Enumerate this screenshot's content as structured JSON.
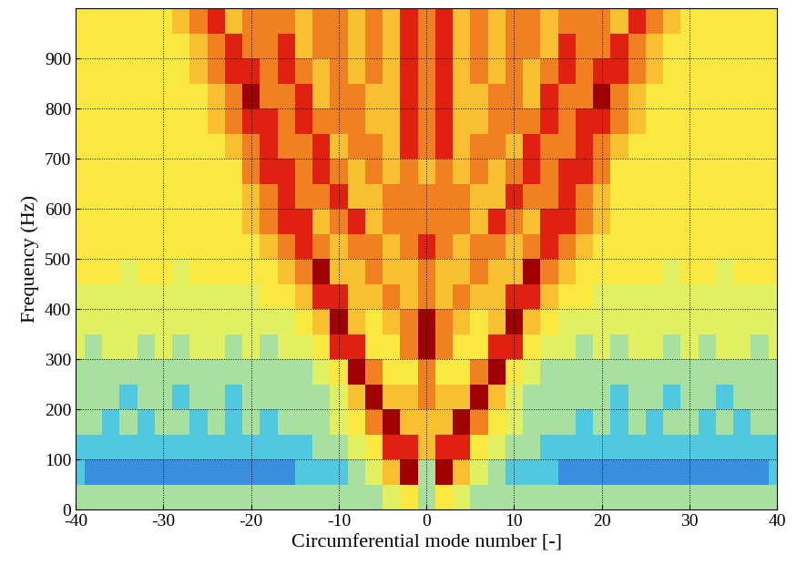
{
  "chart_data": {
    "type": "heatmap",
    "x_label": "Circumferential mode number [-]",
    "y_label": "Frequency (Hz)",
    "x": [
      -40,
      -38,
      -36,
      -34,
      -32,
      -30,
      -28,
      -26,
      -24,
      -22,
      -20,
      -18,
      -16,
      -14,
      -12,
      -10,
      -8,
      -6,
      -4,
      -2,
      0,
      2,
      4,
      6,
      8,
      10,
      12,
      14,
      16,
      18,
      20,
      22,
      24,
      26,
      28,
      30,
      32,
      34,
      36,
      38,
      40
    ],
    "y": [
      25,
      75,
      125,
      175,
      225,
      275,
      325,
      375,
      425,
      475,
      525,
      575,
      625,
      675,
      725,
      775,
      825,
      875,
      925,
      975
    ],
    "cells": [
      [
        3,
        3,
        3,
        3,
        3,
        3,
        3,
        3,
        3,
        3,
        3,
        3,
        3,
        3,
        3,
        3,
        3,
        3,
        4,
        5,
        3,
        5,
        4,
        3,
        3,
        3,
        3,
        3,
        3,
        3,
        3,
        3,
        3,
        3,
        3,
        3,
        3,
        3,
        3,
        3,
        3
      ],
      [
        2,
        1,
        1,
        1,
        1,
        1,
        1,
        1,
        1,
        1,
        1,
        1,
        1,
        2,
        2,
        2,
        3,
        4,
        6,
        9,
        3,
        9,
        6,
        4,
        3,
        2,
        2,
        2,
        1,
        1,
        1,
        1,
        1,
        1,
        1,
        1,
        1,
        1,
        1,
        1,
        2
      ],
      [
        2,
        2,
        2,
        2,
        2,
        2,
        2,
        2,
        2,
        2,
        2,
        2,
        2,
        2,
        3,
        3,
        4,
        5,
        8,
        8,
        6,
        8,
        8,
        5,
        4,
        3,
        3,
        2,
        2,
        2,
        2,
        2,
        2,
        2,
        2,
        2,
        2,
        2,
        2,
        2,
        2
      ],
      [
        3,
        3,
        2,
        3,
        2,
        3,
        3,
        2,
        3,
        2,
        3,
        2,
        3,
        3,
        3,
        4,
        5,
        7,
        9,
        6,
        6,
        6,
        9,
        7,
        5,
        4,
        3,
        3,
        3,
        2,
        3,
        2,
        3,
        2,
        3,
        3,
        2,
        3,
        2,
        3,
        3
      ],
      [
        3,
        3,
        3,
        2,
        3,
        3,
        2,
        3,
        3,
        2,
        3,
        3,
        3,
        3,
        3,
        4,
        6,
        9,
        6,
        6,
        7,
        6,
        6,
        9,
        6,
        4,
        3,
        3,
        3,
        3,
        3,
        2,
        3,
        3,
        2,
        3,
        3,
        2,
        3,
        3,
        3
      ],
      [
        3,
        3,
        3,
        3,
        3,
        3,
        3,
        3,
        3,
        3,
        3,
        3,
        3,
        3,
        4,
        5,
        9,
        7,
        5,
        5,
        7,
        5,
        5,
        7,
        9,
        5,
        4,
        3,
        3,
        3,
        3,
        3,
        3,
        3,
        3,
        3,
        3,
        3,
        3,
        3,
        3
      ],
      [
        4,
        3,
        4,
        4,
        3,
        4,
        3,
        4,
        4,
        3,
        4,
        3,
        4,
        4,
        5,
        8,
        8,
        5,
        5,
        7,
        9,
        7,
        5,
        5,
        8,
        8,
        5,
        4,
        4,
        3,
        4,
        3,
        4,
        4,
        3,
        4,
        3,
        4,
        4,
        3,
        4
      ],
      [
        4,
        4,
        4,
        4,
        4,
        4,
        4,
        4,
        4,
        4,
        4,
        4,
        4,
        5,
        6,
        9,
        6,
        5,
        6,
        7,
        9,
        7,
        6,
        5,
        6,
        9,
        6,
        5,
        4,
        4,
        4,
        4,
        4,
        4,
        4,
        4,
        4,
        4,
        4,
        4,
        4
      ],
      [
        4,
        4,
        4,
        4,
        4,
        4,
        4,
        4,
        4,
        4,
        4,
        5,
        5,
        6,
        8,
        8,
        6,
        6,
        7,
        6,
        7,
        6,
        7,
        6,
        6,
        8,
        8,
        6,
        5,
        5,
        4,
        4,
        4,
        4,
        4,
        4,
        4,
        4,
        4,
        4,
        4
      ],
      [
        5,
        5,
        5,
        4,
        5,
        5,
        4,
        5,
        5,
        5,
        5,
        5,
        6,
        7,
        9,
        6,
        6,
        7,
        6,
        6,
        7,
        6,
        6,
        7,
        6,
        6,
        9,
        7,
        6,
        5,
        5,
        5,
        5,
        5,
        4,
        5,
        5,
        4,
        5,
        5,
        5
      ],
      [
        5,
        5,
        5,
        5,
        5,
        5,
        5,
        5,
        5,
        5,
        5,
        6,
        7,
        8,
        7,
        6,
        7,
        7,
        6,
        7,
        8,
        7,
        6,
        7,
        7,
        6,
        7,
        8,
        7,
        6,
        5,
        5,
        5,
        5,
        5,
        5,
        5,
        5,
        5,
        5,
        5
      ],
      [
        5,
        5,
        5,
        5,
        5,
        5,
        5,
        5,
        5,
        5,
        6,
        7,
        8,
        8,
        6,
        7,
        8,
        6,
        7,
        7,
        7,
        7,
        7,
        6,
        8,
        7,
        6,
        8,
        8,
        7,
        6,
        5,
        5,
        5,
        5,
        5,
        5,
        5,
        5,
        5,
        5
      ],
      [
        5,
        5,
        5,
        5,
        5,
        5,
        5,
        5,
        5,
        5,
        6,
        7,
        8,
        7,
        7,
        8,
        6,
        6,
        7,
        7,
        7,
        7,
        7,
        6,
        6,
        8,
        7,
        7,
        8,
        7,
        6,
        5,
        5,
        5,
        5,
        5,
        5,
        5,
        5,
        5,
        5
      ],
      [
        5,
        5,
        5,
        5,
        5,
        5,
        5,
        5,
        5,
        5,
        7,
        8,
        8,
        7,
        8,
        7,
        6,
        7,
        6,
        7,
        6,
        7,
        6,
        7,
        6,
        7,
        8,
        7,
        8,
        8,
        7,
        5,
        5,
        5,
        5,
        5,
        5,
        5,
        5,
        5,
        5
      ],
      [
        5,
        5,
        5,
        5,
        5,
        5,
        5,
        5,
        5,
        6,
        7,
        8,
        7,
        7,
        8,
        6,
        7,
        7,
        6,
        8,
        7,
        8,
        6,
        7,
        7,
        6,
        8,
        7,
        7,
        8,
        7,
        6,
        5,
        5,
        5,
        5,
        5,
        5,
        5,
        5,
        5
      ],
      [
        5,
        5,
        5,
        5,
        5,
        5,
        5,
        5,
        6,
        7,
        8,
        8,
        7,
        8,
        7,
        7,
        7,
        6,
        6,
        8,
        7,
        8,
        6,
        6,
        7,
        7,
        7,
        8,
        7,
        8,
        8,
        7,
        6,
        5,
        5,
        5,
        5,
        5,
        5,
        5,
        5
      ],
      [
        5,
        5,
        5,
        5,
        5,
        5,
        5,
        5,
        6,
        7,
        9,
        7,
        7,
        8,
        6,
        7,
        7,
        6,
        6,
        8,
        7,
        8,
        6,
        6,
        7,
        7,
        6,
        8,
        7,
        7,
        9,
        7,
        6,
        5,
        5,
        5,
        5,
        5,
        5,
        5,
        5
      ],
      [
        5,
        5,
        5,
        5,
        5,
        5,
        5,
        6,
        7,
        8,
        8,
        7,
        8,
        7,
        6,
        7,
        6,
        7,
        6,
        8,
        7,
        8,
        6,
        7,
        6,
        7,
        6,
        7,
        8,
        7,
        8,
        8,
        7,
        6,
        5,
        5,
        5,
        5,
        5,
        5,
        5
      ],
      [
        5,
        5,
        5,
        5,
        5,
        5,
        5,
        6,
        7,
        8,
        7,
        7,
        8,
        6,
        7,
        7,
        6,
        7,
        6,
        8,
        7,
        8,
        6,
        7,
        6,
        7,
        7,
        6,
        8,
        7,
        7,
        8,
        7,
        6,
        5,
        5,
        5,
        5,
        5,
        5,
        5
      ],
      [
        5,
        5,
        5,
        5,
        5,
        5,
        6,
        7,
        8,
        6,
        7,
        7,
        7,
        6,
        7,
        7,
        6,
        7,
        6,
        8,
        7,
        8,
        6,
        7,
        6,
        7,
        7,
        6,
        7,
        7,
        7,
        6,
        8,
        7,
        6,
        5,
        5,
        5,
        5,
        5,
        5
      ]
    ],
    "xlim": [
      -40,
      40
    ],
    "ylim": [
      0,
      1000
    ],
    "xticks": [
      -40,
      -30,
      -20,
      -10,
      0,
      10,
      20,
      30,
      40
    ],
    "yticks": [
      0,
      100,
      200,
      300,
      400,
      500,
      600,
      700,
      800,
      900
    ],
    "grid": true
  }
}
